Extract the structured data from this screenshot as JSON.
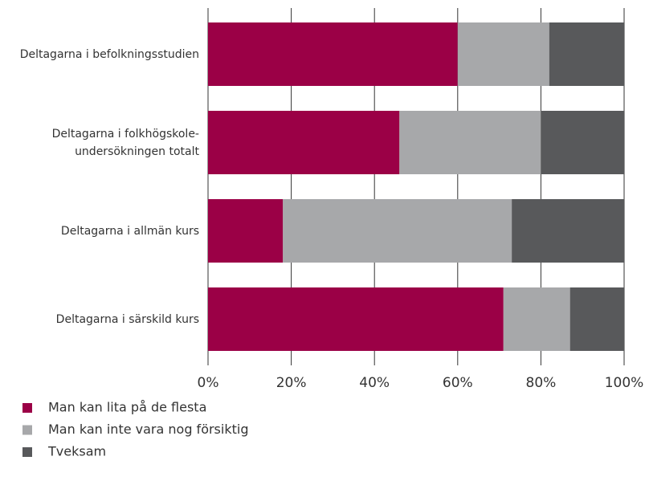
{
  "chart_data": {
    "type": "stacked-barh",
    "categories": [
      "Deltagarna i befolkningsstudien",
      "Deltagarna i folkhögskole-\nundersökningen totalt",
      "Deltagarna i allmän kurs",
      "Deltagarna i särskild kurs"
    ],
    "series": [
      {
        "name": "Man kan lita på de flesta",
        "color": "#9b0046",
        "values": [
          60,
          46,
          18,
          71
        ]
      },
      {
        "name": "Man kan inte vara nog försiktig",
        "color": "#a7a8aa",
        "values": [
          22,
          34,
          55,
          16
        ]
      },
      {
        "name": "Tveksam",
        "color": "#58595b",
        "values": [
          18,
          20,
          27,
          13
        ]
      }
    ],
    "xlim": [
      0,
      100
    ],
    "xticks": [
      {
        "value": 0,
        "label": "0%"
      },
      {
        "value": 20,
        "label": "20%"
      },
      {
        "value": 40,
        "label": "40%"
      },
      {
        "value": 60,
        "label": "60%"
      },
      {
        "value": 80,
        "label": "80%"
      },
      {
        "value": 100,
        "label": "100%"
      }
    ],
    "grid": true
  }
}
